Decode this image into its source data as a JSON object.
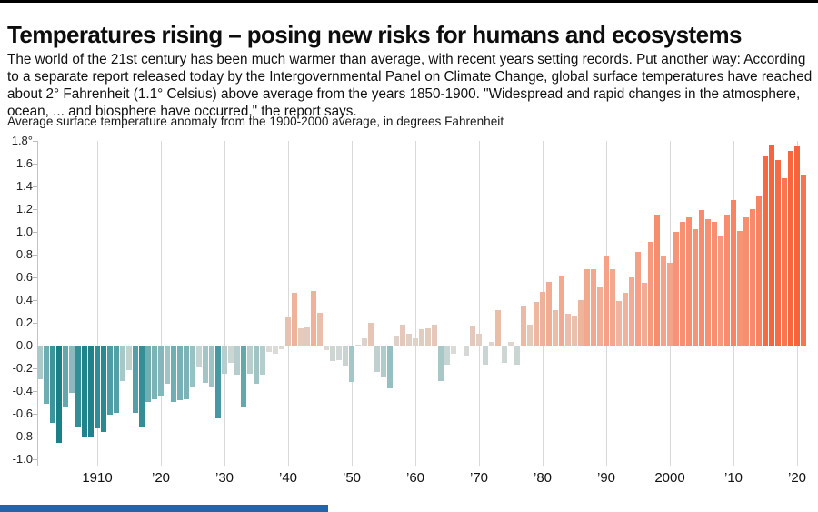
{
  "header": {
    "title": "Temperatures rising – posing new risks for humans and ecosystems",
    "intro": "The world of the 21st century has been much warmer than average, with recent years setting records. Put another way: According to a separate report released today by the Intergovernmental Panel on Climate Change, global surface temperatures have reached about 2° Fahrenheit (1.1° Celsius) above average from the years 1850-1900. \"Widespread and rapid changes in the atmosphere, ocean, ... and biosphere have occurred,\" the report says."
  },
  "chart_data": {
    "type": "bar",
    "title": "Average surface temperature anomaly from the 1900-2000 average, in degrees Fahrenheit",
    "xlabel": "",
    "ylabel": "degrees Fahrenheit",
    "ylim": [
      -1.0,
      1.8
    ],
    "grid": "vertical decade gridlines, zero baseline only",
    "legend_position": "none",
    "ytick_labels": [
      "1.8°",
      "1.6",
      "1.4",
      "1.2",
      "1.0",
      "0.8",
      "0.6",
      "0.4",
      "0.2",
      "0.0",
      "-0.2",
      "-0.4",
      "-0.6",
      "-0.8",
      "-1.0"
    ],
    "ytick_values": [
      1.8,
      1.6,
      1.4,
      1.2,
      1.0,
      0.8,
      0.6,
      0.4,
      0.2,
      0.0,
      -0.2,
      -0.4,
      -0.6,
      -0.8,
      -1.0
    ],
    "xtick_labels": [
      "1910",
      "’20",
      "’30",
      "’40",
      "’50",
      "’60",
      "’70",
      "’80",
      "’90",
      "2000",
      "’10",
      "’20"
    ],
    "xtick_years": [
      1910,
      1920,
      1930,
      1940,
      1950,
      1960,
      1970,
      1980,
      1990,
      2000,
      2010,
      2020
    ],
    "start_year": 1901,
    "end_year": 2021,
    "years": [
      1901,
      1902,
      1903,
      1904,
      1905,
      1906,
      1907,
      1908,
      1909,
      1910,
      1911,
      1912,
      1913,
      1914,
      1915,
      1916,
      1917,
      1918,
      1919,
      1920,
      1921,
      1922,
      1923,
      1924,
      1925,
      1926,
      1927,
      1928,
      1929,
      1930,
      1931,
      1932,
      1933,
      1934,
      1935,
      1936,
      1937,
      1938,
      1939,
      1940,
      1941,
      1942,
      1943,
      1944,
      1945,
      1946,
      1947,
      1948,
      1949,
      1950,
      1951,
      1952,
      1953,
      1954,
      1955,
      1956,
      1957,
      1958,
      1959,
      1960,
      1961,
      1962,
      1963,
      1964,
      1965,
      1966,
      1967,
      1968,
      1969,
      1970,
      1971,
      1972,
      1973,
      1974,
      1975,
      1976,
      1977,
      1978,
      1979,
      1980,
      1981,
      1982,
      1983,
      1984,
      1985,
      1986,
      1987,
      1988,
      1989,
      1990,
      1991,
      1992,
      1993,
      1994,
      1995,
      1996,
      1997,
      1998,
      1999,
      2000,
      2001,
      2002,
      2003,
      2004,
      2005,
      2006,
      2007,
      2008,
      2009,
      2010,
      2011,
      2012,
      2013,
      2014,
      2015,
      2016,
      2017,
      2018,
      2019,
      2020,
      2021
    ],
    "values": [
      -0.29,
      -0.5,
      -0.67,
      -0.85,
      -0.53,
      -0.41,
      -0.71,
      -0.79,
      -0.8,
      -0.72,
      -0.75,
      -0.6,
      -0.58,
      -0.3,
      -0.21,
      -0.58,
      -0.71,
      -0.49,
      -0.46,
      -0.43,
      -0.33,
      -0.49,
      -0.47,
      -0.46,
      -0.36,
      -0.18,
      -0.32,
      -0.35,
      -0.63,
      -0.24,
      -0.14,
      -0.25,
      -0.53,
      -0.24,
      -0.33,
      -0.25,
      -0.05,
      -0.06,
      -0.02,
      0.25,
      0.46,
      0.15,
      0.16,
      0.48,
      0.29,
      -0.03,
      -0.13,
      -0.12,
      -0.17,
      -0.31,
      0.01,
      0.06,
      0.2,
      -0.22,
      -0.27,
      -0.37,
      0.09,
      0.18,
      0.1,
      0.06,
      0.14,
      0.15,
      0.18,
      -0.3,
      -0.16,
      -0.06,
      0.0,
      -0.09,
      0.17,
      0.1,
      -0.16,
      0.03,
      0.31,
      -0.14,
      0.03,
      -0.16,
      0.34,
      0.18,
      0.38,
      0.47,
      0.56,
      0.31,
      0.61,
      0.28,
      0.26,
      0.4,
      0.67,
      0.67,
      0.51,
      0.79,
      0.67,
      0.39,
      0.46,
      0.6,
      0.82,
      0.55,
      0.91,
      1.15,
      0.78,
      0.73,
      1.0,
      1.09,
      1.13,
      1.02,
      1.19,
      1.11,
      1.09,
      0.96,
      1.15,
      1.28,
      1.01,
      1.13,
      1.2,
      1.31,
      1.67,
      1.77,
      1.63,
      1.47,
      1.71,
      1.75,
      1.5
    ],
    "color_stops": [
      {
        "v": -1.0,
        "c": "#0e7580"
      },
      {
        "v": -0.8,
        "c": "#1f828b"
      },
      {
        "v": -0.6,
        "c": "#4d9da4"
      },
      {
        "v": -0.4,
        "c": "#8ebcbf"
      },
      {
        "v": -0.2,
        "c": "#c2d3d1"
      },
      {
        "v": -0.05,
        "c": "#dcdad6"
      },
      {
        "v": 0.05,
        "c": "#ded4cd"
      },
      {
        "v": 0.2,
        "c": "#e5c6b6"
      },
      {
        "v": 0.4,
        "c": "#eeb59e"
      },
      {
        "v": 0.6,
        "c": "#f2aa90"
      },
      {
        "v": 0.8,
        "c": "#f5a185"
      },
      {
        "v": 1.0,
        "c": "#f79478"
      },
      {
        "v": 1.2,
        "c": "#f78a6b"
      },
      {
        "v": 1.4,
        "c": "#f77d58"
      },
      {
        "v": 1.6,
        "c": "#f66d46"
      },
      {
        "v": 1.8,
        "c": "#f6613a"
      }
    ]
  },
  "footer": {
    "accent_color": "#2264ae"
  }
}
